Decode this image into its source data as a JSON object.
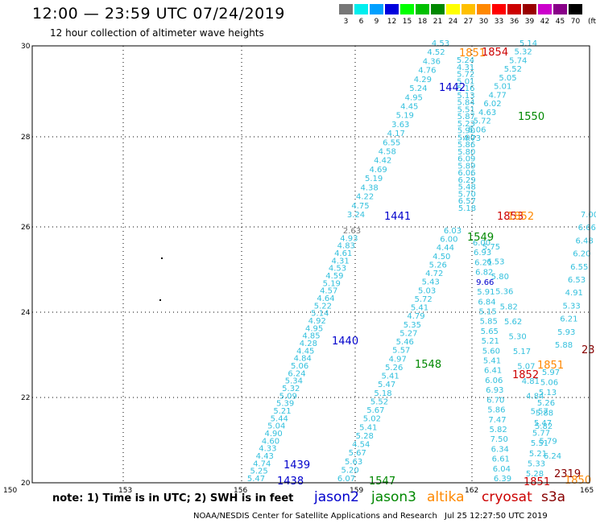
{
  "header": {
    "title": "12:00 — 23:59 UTC 07/24/2019",
    "subtitle": "12 hour collection of altimeter wave heights"
  },
  "legend": {
    "unit": "(ft)",
    "colors": [
      "#777777",
      "#00eeee",
      "#00a0ff",
      "#0000dd",
      "#00ff00",
      "#00c000",
      "#008800",
      "#ffff00",
      "#ffc000",
      "#ff8800",
      "#ff0000",
      "#cc0000",
      "#990000",
      "#cc00cc",
      "#880088",
      "#000000"
    ],
    "labels": [
      "3",
      "6",
      "9",
      "12",
      "15",
      "18",
      "21",
      "24",
      "27",
      "30",
      "33",
      "36",
      "39",
      "42",
      "45",
      "70"
    ]
  },
  "axes": {
    "lon_ticks": [
      "150",
      "153",
      "156",
      "159",
      "162",
      "165"
    ],
    "lat_ticks": [
      "20",
      "22",
      "24",
      "26",
      "28",
      "28",
      "30"
    ]
  },
  "chart_data": {
    "type": "scatter",
    "swh_color": "#33c0dd",
    "tracks": [
      {
        "name": "1438",
        "values": [
          "5.47",
          "5.25",
          "4.74",
          "4.43",
          "4.33",
          "4.60",
          "4.90",
          "5.04",
          "5.44",
          "5.21",
          "5.39",
          "5.09",
          "5.32",
          "5.34",
          "6.24",
          "5.06",
          "4.84",
          "4.45",
          "4.28",
          "4.85",
          "4.95",
          "4.92",
          "5.14",
          "5.22",
          "4.64",
          "4.57",
          "5.19",
          "4.59",
          "4.53",
          "4.31",
          "4.61",
          "4.83",
          "4.93",
          "2.63"
        ]
      },
      {
        "name": "1441",
        "values": [
          "3.24",
          "4.75",
          "4.22",
          "4.38",
          "5.19",
          "4.69",
          "4.42",
          "4.58",
          "6.55",
          "4.17",
          "3.63",
          "5.19",
          "4.45",
          "4.95",
          "5.24",
          "4.29",
          "4.76",
          "4.36",
          "4.52",
          "4.53"
        ]
      },
      {
        "name": "1547",
        "values": [
          "6.07",
          "5.20",
          "5.63",
          "5.67",
          "4.54",
          "5.28",
          "5.41",
          "5.02",
          "5.67",
          "5.52",
          "5.18",
          "5.47",
          "5.41",
          "5.26",
          "4.97",
          "5.57",
          "5.46",
          "5.27",
          "5.35",
          "4.79",
          "5.41",
          "5.72",
          "5.03",
          "5.43",
          "4.72",
          "5.26",
          "4.50",
          "4.44",
          "6.00",
          "6.03"
        ]
      },
      {
        "name": "1442",
        "values": [
          "5.24",
          "4.31",
          "5.72",
          "5.01",
          "5.16",
          "5.13",
          "5.84",
          "5.51",
          "5.87",
          "5.23",
          "5.90",
          "5.90",
          "5.86",
          "5.80",
          "6.09",
          "5.89",
          "6.06",
          "6.29",
          "5.48",
          "5.70",
          "6.57",
          "5.18"
        ]
      },
      {
        "name": "1550",
        "values": [
          "5.14",
          "5.32",
          "5.74",
          "5.52",
          "5.05",
          "5.01",
          "4.77",
          "6.02",
          "4.63",
          "5.72",
          "5.06",
          "4.73"
        ]
      },
      {
        "name": "1549",
        "values": [
          "6.00",
          "6.93",
          "6.21",
          "6.82",
          "9.66",
          "5.91",
          "6.84",
          "5.15",
          "5.85",
          "5.65",
          "5.21",
          "5.60",
          "5.41",
          "6.41",
          "6.06",
          "6.93",
          "6.70",
          "5.86",
          "7.47",
          "5.82",
          "7.50",
          "6.34",
          "6.61",
          "6.04",
          "6.39"
        ]
      },
      {
        "name": "1548",
        "values": [
          "5.75",
          "6.53",
          "5.80",
          "5.36",
          "5.82",
          "5.62",
          "5.30",
          "5.17",
          "5.07",
          "4.81",
          "4.84",
          "5.57",
          "5.82",
          "5.79",
          "6.24"
        ]
      },
      {
        "name": "1851",
        "values": [
          "5.97",
          "5.06",
          "5.13",
          "5.26",
          "5.88",
          "5.47",
          "5.77",
          "5.51",
          "5.21",
          "5.33",
          "5.28"
        ]
      },
      {
        "name": "2319",
        "values": [
          "7.00",
          "6.66",
          "6.48",
          "6.20",
          "6.55",
          "6.53",
          "4.91",
          "5.33",
          "6.21",
          "5.93",
          "5.88"
        ]
      }
    ]
  },
  "pass_labels": [
    {
      "text": "1854",
      "color": "#cc0000"
    },
    {
      "text": "1851",
      "color": "#ff8800"
    },
    {
      "text": "1442",
      "color": "#0000cc"
    },
    {
      "text": "1550",
      "color": "#008800"
    },
    {
      "text": "1441",
      "color": "#0000cc"
    },
    {
      "text": "1853",
      "color": "#cc0000"
    },
    {
      "text": "1852",
      "color": "#ff8800"
    },
    {
      "text": "1549",
      "color": "#008800"
    },
    {
      "text": "1440",
      "color": "#0000cc"
    },
    {
      "text": "1548",
      "color": "#008800"
    },
    {
      "text": "1851",
      "color": "#ff8800"
    },
    {
      "text": "1852",
      "color": "#cc0000"
    },
    {
      "text": "23",
      "color": "#880000"
    },
    {
      "text": "1439",
      "color": "#0000cc"
    },
    {
      "text": "1438",
      "color": "#0000cc"
    },
    {
      "text": "1547",
      "color": "#008800"
    },
    {
      "text": "2319",
      "color": "#880000"
    },
    {
      "text": "1851",
      "color": "#cc0000"
    },
    {
      "text": "1850",
      "color": "#ff8800"
    }
  ],
  "footer": {
    "note": "note:  1) Time is in UTC;  2) SWH is in feet",
    "satellites": [
      {
        "name": "jason2",
        "color": "#0000cc"
      },
      {
        "name": "jason3",
        "color": "#008800"
      },
      {
        "name": "altika",
        "color": "#ff8800"
      },
      {
        "name": "cryosat",
        "color": "#cc0000"
      },
      {
        "name": "s3a",
        "color": "#880000"
      }
    ],
    "credit": "NOAA/NESDIS Center for Satellite Applications and Research",
    "timestamp": "Jul 25 12:27:50 UTC 2019"
  }
}
